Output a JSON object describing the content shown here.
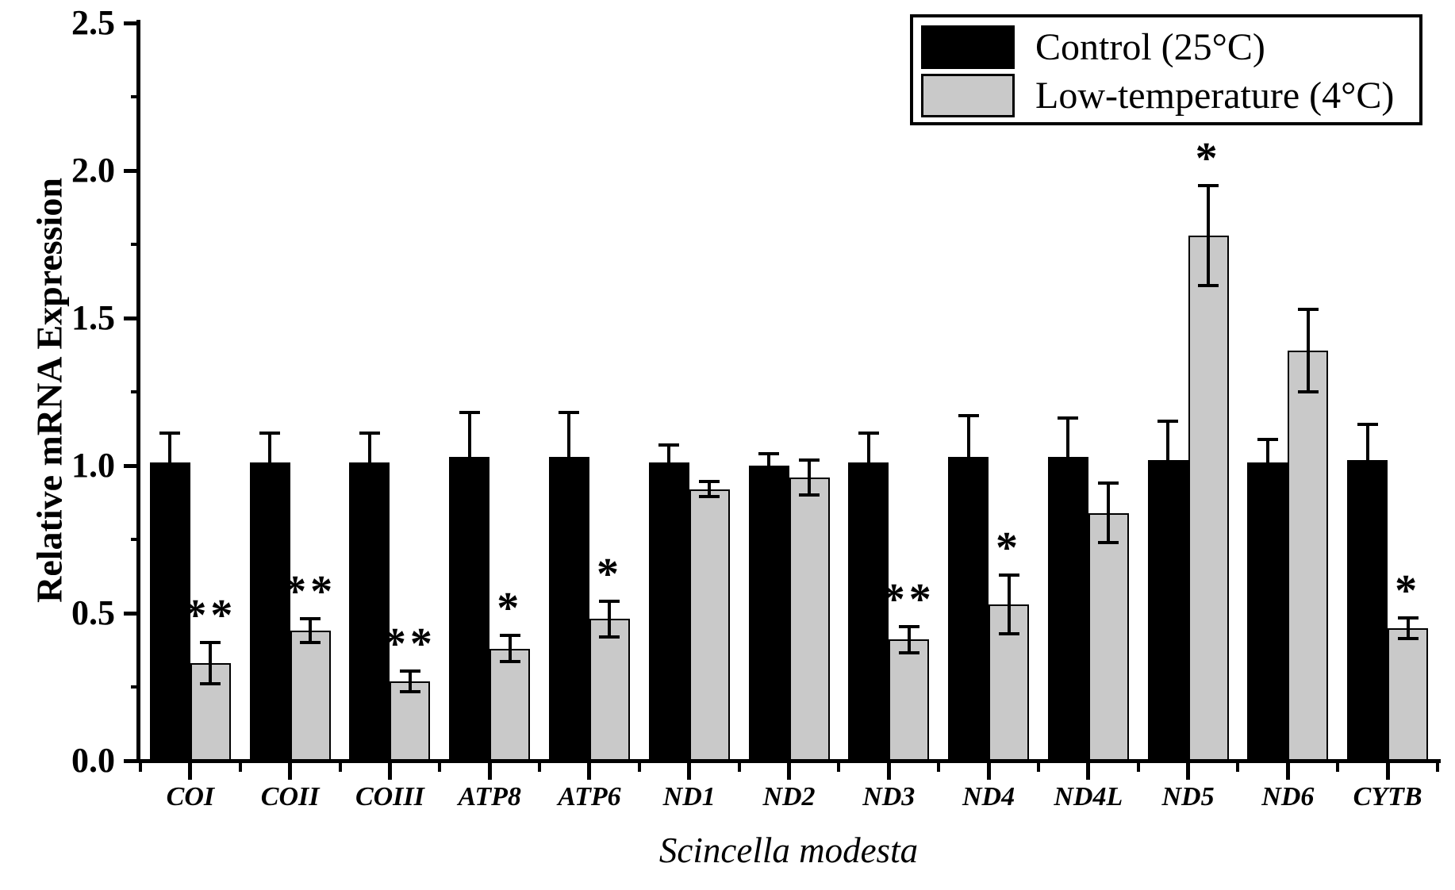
{
  "chart_data": {
    "type": "bar",
    "title": "",
    "xlabel": "Scincella modesta",
    "ylabel": "Relative mRNA Expression",
    "ylim": [
      0.0,
      2.5
    ],
    "yticks_major": [
      0.0,
      0.5,
      1.0,
      1.5,
      2.0,
      2.5
    ],
    "ytick_labels": [
      "0.0",
      "0.5",
      "1.0",
      "1.5",
      "2.0",
      "2.5"
    ],
    "yticks_minor": [
      0.25,
      0.75,
      1.25,
      1.75,
      2.25
    ],
    "grid": "off",
    "legend_position": "top-right",
    "categories": [
      "COI",
      "COII",
      "COIII",
      "ATP8",
      "ATP6",
      "ND1",
      "ND2",
      "ND3",
      "ND4",
      "ND4L",
      "ND5",
      "ND6",
      "CYTB"
    ],
    "series": [
      {
        "name": "Control (25°C)",
        "color": "#000000",
        "values": [
          1.01,
          1.01,
          1.01,
          1.03,
          1.03,
          1.01,
          1.0,
          1.01,
          1.03,
          1.03,
          1.02,
          1.01,
          1.02
        ],
        "errors": [
          0.1,
          0.1,
          0.1,
          0.15,
          0.15,
          0.06,
          0.04,
          0.1,
          0.14,
          0.13,
          0.13,
          0.08,
          0.12
        ]
      },
      {
        "name": "Low-temperature (4°C)",
        "color": "#c9c9c9",
        "values": [
          0.33,
          0.44,
          0.27,
          0.38,
          0.48,
          0.92,
          0.96,
          0.41,
          0.53,
          0.84,
          1.78,
          1.39,
          0.45
        ],
        "errors": [
          0.07,
          0.04,
          0.035,
          0.045,
          0.06,
          0.025,
          0.06,
          0.045,
          0.1,
          0.1,
          0.17,
          0.14,
          0.035
        ]
      }
    ],
    "significance": [
      "**",
      "**",
      "**",
      "*",
      "*",
      "",
      "",
      "**",
      "*",
      "",
      "*",
      "",
      "*"
    ]
  }
}
